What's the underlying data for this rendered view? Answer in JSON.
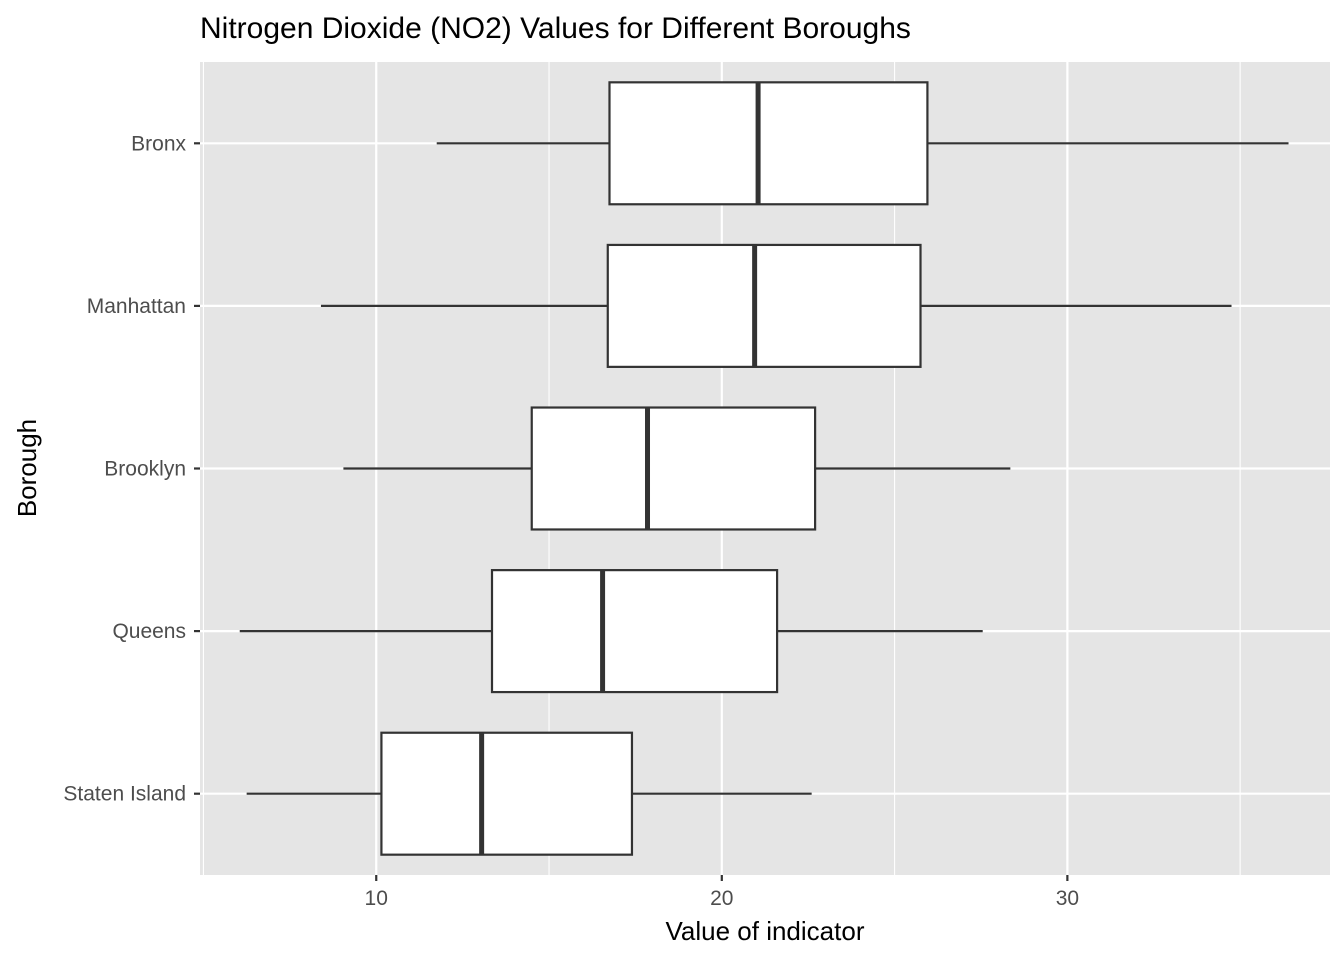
{
  "chart_data": {
    "type": "boxplot",
    "orientation": "horizontal",
    "title": "Nitrogen Dioxide (NO2) Values for Different Boroughs",
    "xlabel": "Value of indicator",
    "ylabel": "Borough",
    "xlim": [
      4.9,
      37.6
    ],
    "x_ticks": [
      10,
      20,
      30
    ],
    "grid": true,
    "colors": {
      "panel": "#e5e5e5",
      "grid_major": "#ffffff",
      "box_fill": "#ffffff",
      "box_stroke": "#333333",
      "tick_text": "#4d4d4d",
      "axis_text": "#000000"
    },
    "categories": [
      "Bronx",
      "Manhattan",
      "Brooklyn",
      "Queens",
      "Staten Island"
    ],
    "boxes": [
      {
        "category": "Bronx",
        "whisker_low": 11.75,
        "q1": 16.75,
        "median": 21.05,
        "q3": 25.95,
        "whisker_high": 36.4
      },
      {
        "category": "Manhattan",
        "whisker_low": 8.4,
        "q1": 16.7,
        "median": 20.95,
        "q3": 25.75,
        "whisker_high": 34.75
      },
      {
        "category": "Brooklyn",
        "whisker_low": 9.05,
        "q1": 14.5,
        "median": 17.85,
        "q3": 22.7,
        "whisker_high": 28.35
      },
      {
        "category": "Queens",
        "whisker_low": 6.05,
        "q1": 13.35,
        "median": 16.55,
        "q3": 21.6,
        "whisker_high": 27.55
      },
      {
        "category": "Staten Island",
        "whisker_low": 6.25,
        "q1": 10.15,
        "median": 13.05,
        "q3": 17.4,
        "whisker_high": 22.6
      }
    ]
  }
}
